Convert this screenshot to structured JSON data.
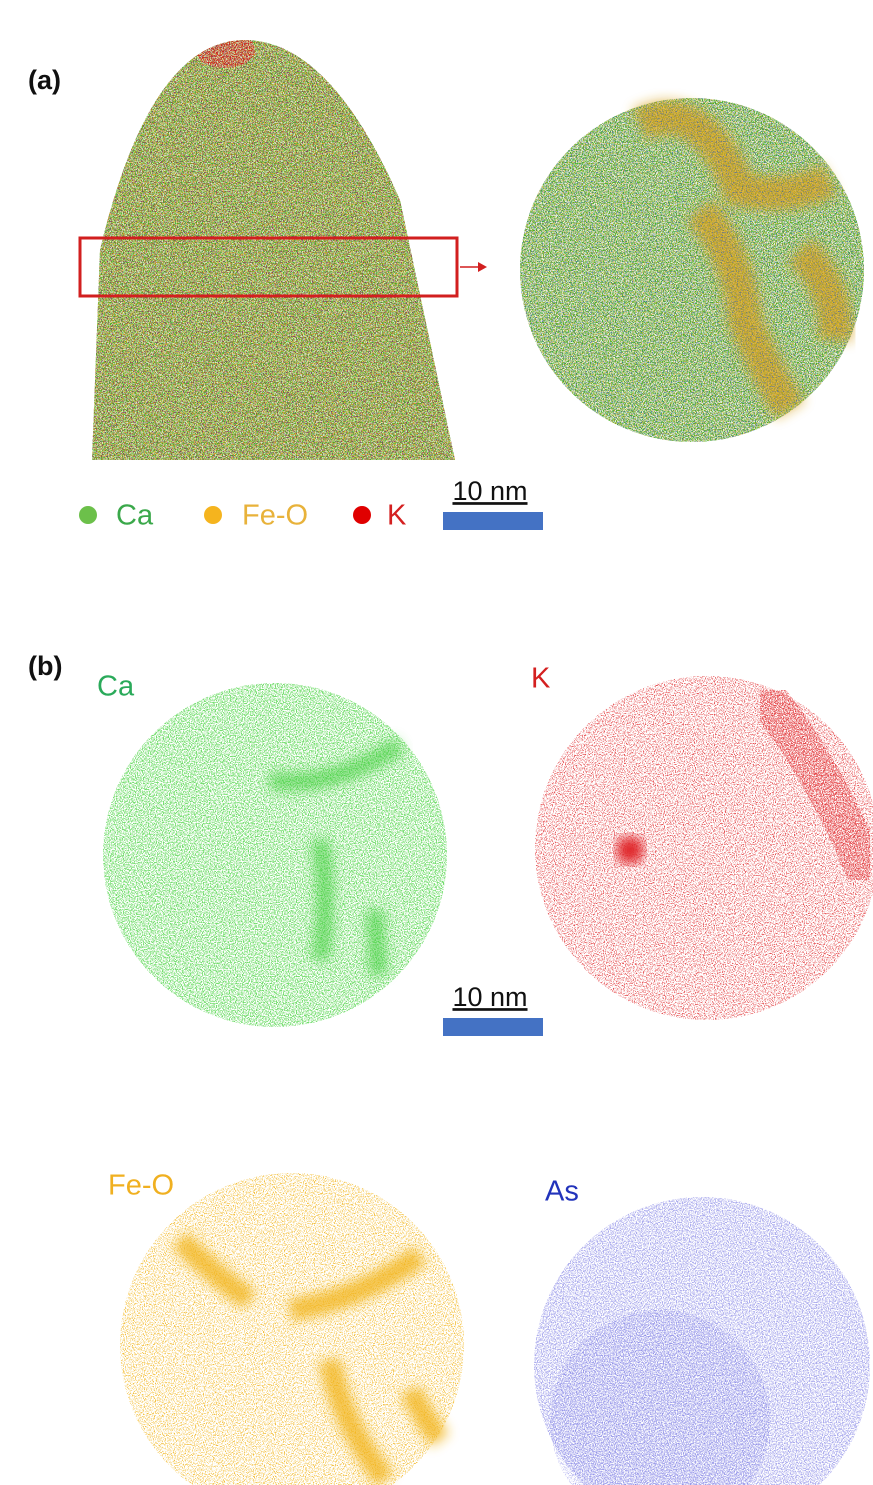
{
  "panel_a": {
    "label": "(a)",
    "legend": [
      "Ca",
      "Fe-O",
      "K"
    ],
    "scale_bar": "10 nm"
  },
  "panel_b": {
    "label": "(b)",
    "maps": [
      "Ca",
      "K",
      "Fe-O",
      "As"
    ],
    "scale_bar": "10 nm"
  }
}
